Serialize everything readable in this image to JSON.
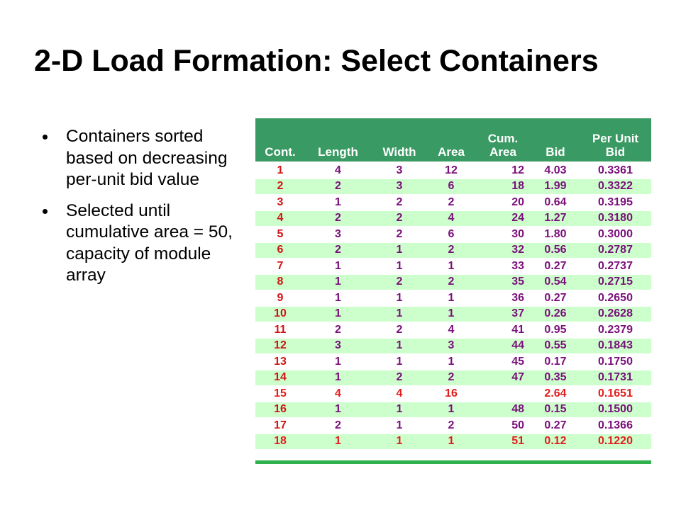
{
  "slide": {
    "title": "2-D Load Formation: Select Containers",
    "bullets": [
      "Containers sorted based on decreasing per-unit bid value",
      "Selected until cumulative area = 50, capacity of module array"
    ]
  },
  "table": {
    "headers": {
      "cont": "Cont.",
      "length": "Length",
      "width": "Width",
      "area": "Area",
      "cum_line1": "Cum.",
      "cum_line2": "Area",
      "bid": "Bid",
      "pub_line1": "Per Unit",
      "pub_line2": "Bid"
    },
    "rows": [
      {
        "cont": "1",
        "length": "4",
        "width": "3",
        "area": "12",
        "cum": "12",
        "bid": "4.03",
        "pub": "0.3361"
      },
      {
        "cont": "2",
        "length": "2",
        "width": "3",
        "area": "6",
        "cum": "18",
        "bid": "1.99",
        "pub": "0.3322"
      },
      {
        "cont": "3",
        "length": "1",
        "width": "2",
        "area": "2",
        "cum": "20",
        "bid": "0.64",
        "pub": "0.3195"
      },
      {
        "cont": "4",
        "length": "2",
        "width": "2",
        "area": "4",
        "cum": "24",
        "bid": "1.27",
        "pub": "0.3180"
      },
      {
        "cont": "5",
        "length": "3",
        "width": "2",
        "area": "6",
        "cum": "30",
        "bid": "1.80",
        "pub": "0.3000"
      },
      {
        "cont": "6",
        "length": "2",
        "width": "1",
        "area": "2",
        "cum": "32",
        "bid": "0.56",
        "pub": "0.2787"
      },
      {
        "cont": "7",
        "length": "1",
        "width": "1",
        "area": "1",
        "cum": "33",
        "bid": "0.27",
        "pub": "0.2737"
      },
      {
        "cont": "8",
        "length": "1",
        "width": "2",
        "area": "2",
        "cum": "35",
        "bid": "0.54",
        "pub": "0.2715"
      },
      {
        "cont": "9",
        "length": "1",
        "width": "1",
        "area": "1",
        "cum": "36",
        "bid": "0.27",
        "pub": "0.2650"
      },
      {
        "cont": "10",
        "length": "1",
        "width": "1",
        "area": "1",
        "cum": "37",
        "bid": "0.26",
        "pub": "0.2628"
      },
      {
        "cont": "11",
        "length": "2",
        "width": "2",
        "area": "4",
        "cum": "41",
        "bid": "0.95",
        "pub": "0.2379"
      },
      {
        "cont": "12",
        "length": "3",
        "width": "1",
        "area": "3",
        "cum": "44",
        "bid": "0.55",
        "pub": "0.1843"
      },
      {
        "cont": "13",
        "length": "1",
        "width": "1",
        "area": "1",
        "cum": "45",
        "bid": "0.17",
        "pub": "0.1750"
      },
      {
        "cont": "14",
        "length": "1",
        "width": "2",
        "area": "2",
        "cum": "47",
        "bid": "0.35",
        "pub": "0.1731"
      },
      {
        "cont": "15",
        "length": "4",
        "width": "4",
        "area": "16",
        "cum": "",
        "bid": "2.64",
        "pub": "0.1651",
        "highlight": true
      },
      {
        "cont": "16",
        "length": "1",
        "width": "1",
        "area": "1",
        "cum": "48",
        "bid": "0.15",
        "pub": "0.1500"
      },
      {
        "cont": "17",
        "length": "2",
        "width": "1",
        "area": "2",
        "cum": "50",
        "bid": "0.27",
        "pub": "0.1366"
      },
      {
        "cont": "18",
        "length": "1",
        "width": "1",
        "area": "1",
        "cum": "51",
        "bid": "0.12",
        "pub": "0.1220",
        "highlight": true
      }
    ]
  },
  "colors": {
    "header_bg": "#3a9a63",
    "row_alt_bg": "#ccffcc",
    "value_purple": "#7a0e7a",
    "value_red": "#e31c1c",
    "bottom_bar": "#2fb14d"
  }
}
